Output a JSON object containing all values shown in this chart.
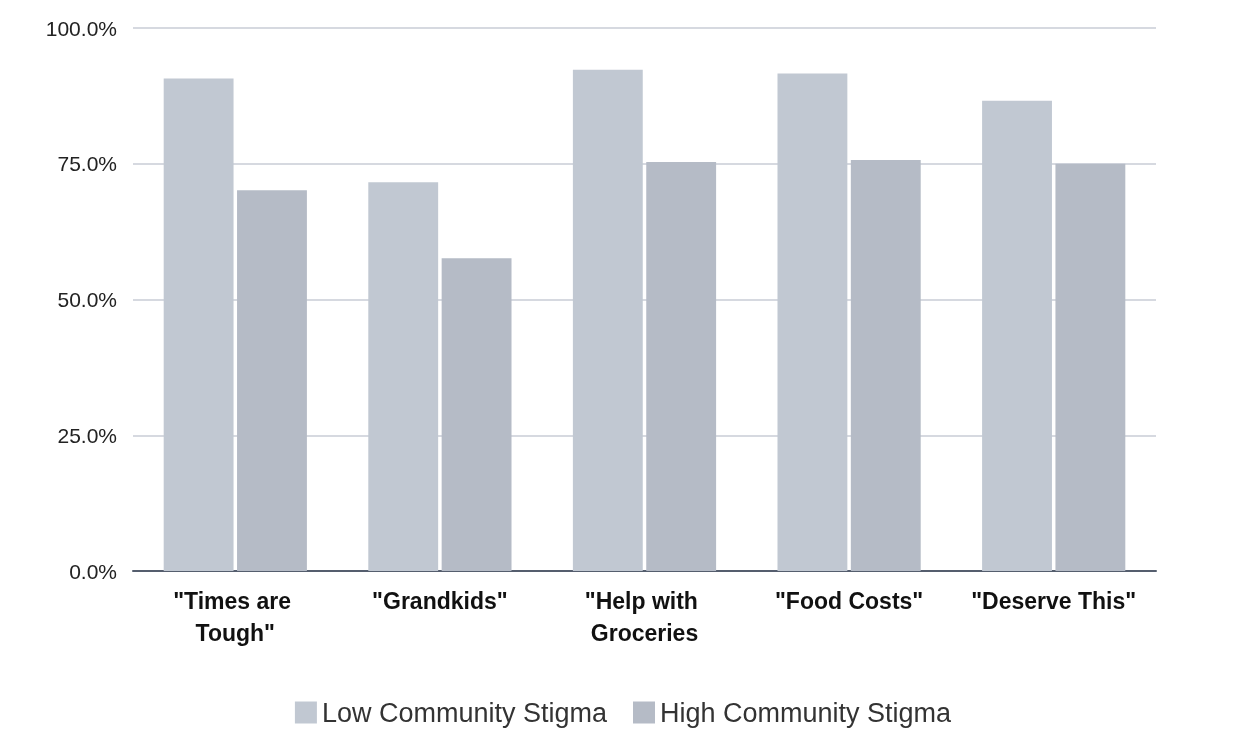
{
  "chart_data": {
    "type": "bar",
    "categories": [
      "\"Times are Tough\"",
      "\"Grandkids\"",
      "\"Help with Groceries",
      "\"Food Costs\"",
      "\"Deserve This\""
    ],
    "series": [
      {
        "name": "Low Community Stigma",
        "color": "#c1c8d2",
        "values": [
          90.7,
          71.6,
          92.3,
          91.6,
          86.6
        ]
      },
      {
        "name": "High Community Stigma",
        "color": "#b5bbc6",
        "values": [
          70.1,
          57.6,
          75.3,
          75.7,
          75.0
        ]
      }
    ],
    "ylim": [
      0,
      100
    ],
    "yticks": [
      {
        "value": 0,
        "label": "0.0%"
      },
      {
        "value": 25,
        "label": "25.0%"
      },
      {
        "value": 50,
        "label": "50.0%"
      },
      {
        "value": 75,
        "label": "75.0%"
      },
      {
        "value": 100,
        "label": "100.0%"
      }
    ],
    "grid": "y",
    "legend": "bottom"
  }
}
